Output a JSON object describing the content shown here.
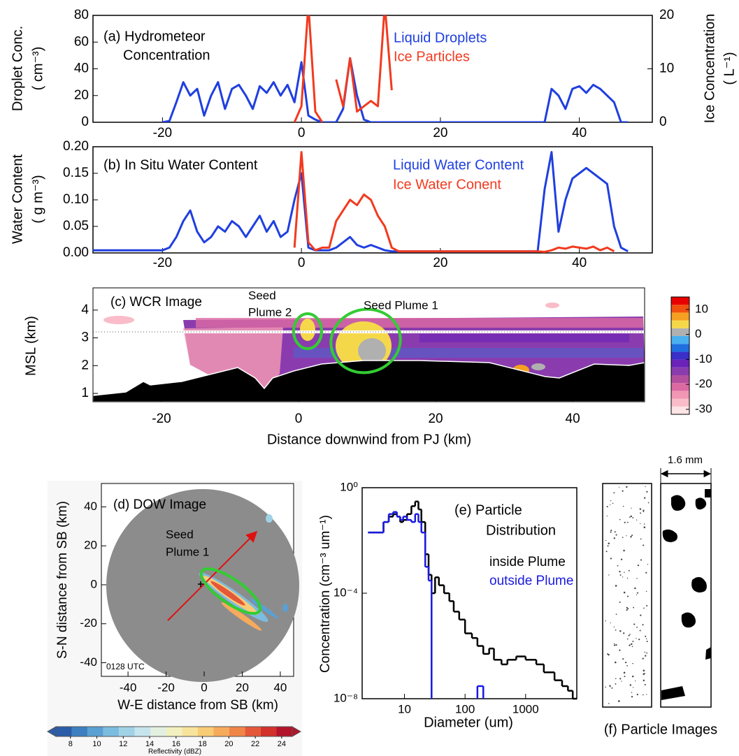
{
  "chart_data": [
    {
      "type": "line",
      "labels": [
        "(a) Hydrometeor",
        "Concentration"
      ],
      "ylabel": [
        "Droplet Conc.",
        "( cm⁻³)"
      ],
      "y2label": [
        "Ice  Concentration",
        "( L⁻¹)"
      ],
      "x": [
        -30,
        -29,
        -28,
        -27,
        -26,
        -25,
        -24,
        -23,
        -22,
        -21,
        -20,
        -19,
        -18,
        -17,
        -16,
        -15,
        -14,
        -13,
        -12,
        -11,
        -10,
        -9,
        -8,
        -7,
        -6,
        -5,
        -4,
        -3,
        -2,
        -1,
        0,
        1,
        2,
        3,
        4,
        5,
        6,
        7,
        8,
        9,
        10,
        11,
        12,
        13,
        14,
        15,
        16,
        17,
        18,
        19,
        20,
        21,
        22,
        23,
        24,
        25,
        26,
        27,
        28,
        29,
        30,
        31,
        32,
        33,
        34,
        35,
        36,
        37,
        38,
        39,
        40,
        41,
        42,
        43,
        44,
        45,
        46,
        47,
        48
      ],
      "series": [
        {
          "name": "Liquid Droplets",
          "color": "#1f3fe0",
          "values": [
            null,
            null,
            null,
            null,
            null,
            null,
            null,
            null,
            null,
            null,
            0,
            1,
            15,
            30,
            20,
            25,
            5,
            20,
            30,
            10,
            25,
            28,
            20,
            10,
            27,
            22,
            30,
            20,
            28,
            15,
            45,
            5,
            2,
            0,
            0,
            0,
            10,
            48,
            20,
            2,
            0,
            0,
            0,
            0,
            0,
            0,
            0,
            0,
            0,
            0,
            0,
            0,
            0,
            0,
            0,
            0,
            0,
            0,
            0,
            0,
            0,
            0,
            0,
            0,
            0,
            0,
            25,
            20,
            10,
            25,
            27,
            22,
            28,
            25,
            20,
            15,
            0,
            0,
            null
          ]
        },
        {
          "name": "Ice Particles",
          "color": "#f23a1f",
          "axis": "y2",
          "values": [
            null,
            null,
            null,
            null,
            null,
            null,
            null,
            null,
            null,
            null,
            null,
            null,
            null,
            null,
            null,
            null,
            null,
            null,
            null,
            null,
            null,
            null,
            null,
            null,
            null,
            null,
            null,
            null,
            null,
            0,
            3,
            22,
            2,
            0,
            null,
            8,
            3,
            12,
            2,
            3,
            4,
            3,
            22,
            6,
            null,
            null,
            null,
            null,
            null,
            null,
            null,
            null,
            null,
            null,
            null,
            null,
            null,
            null,
            null,
            null,
            null,
            null,
            null,
            null,
            null,
            null,
            null,
            null,
            null,
            null,
            null,
            null,
            null,
            null,
            null,
            null,
            null,
            null,
            null
          ]
        }
      ],
      "xlim": [
        -30,
        50.5
      ],
      "xticks": [
        -20,
        0,
        20,
        40
      ],
      "ylim": [
        0,
        80
      ],
      "yticks": [
        0,
        20,
        40,
        60,
        80
      ],
      "y2lim": [
        0,
        20
      ],
      "y2ticks": [
        0,
        10,
        20
      ]
    },
    {
      "type": "line",
      "labels": [
        "(b) In Situ Water Content"
      ],
      "ylabel": [
        "Water Content",
        "( g  m⁻³)"
      ],
      "x": [
        -30,
        -29,
        -28,
        -27,
        -26,
        -25,
        -24,
        -23,
        -22,
        -21,
        -20,
        -19,
        -18,
        -17,
        -16,
        -15,
        -14,
        -13,
        -12,
        -11,
        -10,
        -9,
        -8,
        -7,
        -6,
        -5,
        -4,
        -3,
        -2,
        -1,
        0,
        1,
        2,
        3,
        4,
        5,
        6,
        7,
        8,
        9,
        10,
        11,
        12,
        13,
        14,
        15,
        16,
        17,
        18,
        19,
        20,
        21,
        22,
        23,
        24,
        25,
        26,
        27,
        28,
        29,
        30,
        31,
        32,
        33,
        34,
        35,
        36,
        37,
        38,
        39,
        40,
        41,
        42,
        43,
        44,
        45,
        46,
        47,
        48
      ],
      "series": [
        {
          "name": "Liquid Water Content",
          "color": "#1f3fe0",
          "values": [
            0.005,
            0.005,
            0.005,
            0.005,
            0.005,
            0.005,
            0.005,
            0.005,
            0.005,
            0.005,
            0.005,
            0.01,
            0.03,
            0.06,
            0.08,
            0.04,
            0.02,
            0.03,
            0.05,
            0.04,
            0.06,
            0.05,
            0.03,
            0.05,
            0.07,
            0.04,
            0.06,
            0.03,
            0.04,
            0.1,
            0.15,
            0.01,
            0.005,
            0.005,
            0.005,
            0.01,
            0.02,
            0.03,
            0.015,
            0.01,
            0.015,
            0.01,
            0.005,
            0.003,
            0.003,
            0.003,
            0.003,
            0.003,
            0.003,
            0.003,
            0.003,
            0.003,
            0.003,
            0.003,
            0.003,
            0.003,
            0.003,
            0.003,
            0.003,
            0.003,
            0.003,
            0.003,
            0.003,
            0.003,
            0.003,
            0.12,
            0.19,
            0.04,
            0.1,
            0.14,
            0.15,
            0.16,
            0.15,
            0.14,
            0.13,
            0.05,
            0.01,
            0.003,
            null
          ]
        },
        {
          "name": "Ice Water Conent",
          "color": "#f23a1f",
          "values": [
            null,
            null,
            null,
            null,
            null,
            null,
            null,
            null,
            null,
            null,
            null,
            null,
            null,
            null,
            null,
            null,
            null,
            null,
            null,
            null,
            null,
            null,
            null,
            null,
            null,
            null,
            null,
            null,
            null,
            0.01,
            0.19,
            0.02,
            0.005,
            0.01,
            0.01,
            0.06,
            0.08,
            0.1,
            0.09,
            0.11,
            0.1,
            0.07,
            0.05,
            0.01,
            0.003,
            0.003,
            0.003,
            0.003,
            0.003,
            0.003,
            0.003,
            0.003,
            0.003,
            0.003,
            0.003,
            0.003,
            0.003,
            0.003,
            0.003,
            0.003,
            0.003,
            0.003,
            0.003,
            0.003,
            0.003,
            0.002,
            0.005,
            0.01,
            0.008,
            0.012,
            0.01,
            0.008,
            0.012,
            0.005,
            0.01,
            0.003,
            null,
            null,
            null
          ]
        }
      ],
      "xlim": [
        -30,
        50.5
      ],
      "xticks": [
        -20,
        0,
        20,
        40
      ],
      "ylim": [
        0,
        0.2
      ],
      "yticks": [
        {
          "value": 0,
          "label": "0.00"
        },
        {
          "value": 0.05,
          "label": "0.05"
        },
        {
          "value": 0.1,
          "label": "0.10"
        },
        {
          "value": 0.15,
          "label": "0.15"
        },
        {
          "value": 0.2,
          "label": "0.20"
        }
      ]
    },
    {
      "type": "image",
      "labels": [
        "(c) WCR Image",
        "Seed",
        "Plume 2",
        "Seed Plume 1"
      ],
      "xlabel": "Distance downwind from PJ (km)",
      "ylabel": "MSL (km)",
      "xlim": [
        -30,
        50.5
      ],
      "xticks": [
        -20,
        0,
        20,
        40
      ],
      "ylim": [
        0.7,
        4.8
      ],
      "yticks": [
        1,
        2,
        3,
        4
      ],
      "colorbar": {
        "orientation": "vertical",
        "clim": [
          -32,
          15
        ],
        "ticks": [
          10,
          0,
          -10,
          -20,
          -30
        ],
        "colors": [
          "#fde4e6",
          "#f9bcc8",
          "#f196b4",
          "#dc6aa2",
          "#b44f9e",
          "#8a3cae",
          "#6a22b8",
          "#3a2fc8",
          "#1f6fe0",
          "#4ab0f0",
          "#b0b0b0",
          "#f5d84a",
          "#f5a020",
          "#f05010",
          "#e80000"
        ]
      }
    },
    {
      "type": "image",
      "labels": [
        "(d) DOW Image",
        "Seed",
        "Plume 1",
        "0128 UTC"
      ],
      "xlabel": "W-E distance from SB (km)",
      "ylabel": "S-N distance from SB (km)",
      "xlim": [
        -54,
        47
      ],
      "xticks": [
        -40,
        -20,
        0,
        20,
        40
      ],
      "ylim": [
        -47,
        52
      ],
      "yticks": [
        -40,
        -20,
        0,
        20,
        40
      ],
      "colorbar": {
        "orientation": "horizontal",
        "label": "Reflectivity (dBZ)",
        "clim": [
          6.9,
          24.8
        ],
        "ticks": [
          8,
          10,
          12,
          14,
          16,
          18,
          20,
          22,
          24
        ],
        "colors": [
          "#2a5ca8",
          "#3d7fc0",
          "#5aa0d2",
          "#7cbcdf",
          "#a0d2e6",
          "#c6e4ee",
          "#e3efe0",
          "#f3f0c0",
          "#f8e39a",
          "#f8cb75",
          "#f6aa5c",
          "#f08548",
          "#e4583a",
          "#d2312c",
          "#b2142a"
        ]
      }
    },
    {
      "type": "histogram",
      "labels": [
        "(e) Particle",
        "Distribution"
      ],
      "xlabel": "Diameter (um)",
      "ylabel": "Concentration (cm⁻³ um⁻¹)",
      "xlog": true,
      "ylog": true,
      "bins": [
        2.5,
        3.5,
        4.5,
        5.5,
        6.5,
        7.5,
        8.5,
        9.5,
        11,
        13,
        15,
        17,
        19,
        22,
        25,
        28,
        32,
        37,
        45,
        55,
        65,
        80,
        100,
        130,
        160,
        200,
        250,
        300,
        400,
        500,
        700,
        1000,
        1500,
        2000,
        3000,
        4000,
        5000,
        6000,
        7000
      ],
      "series": [
        {
          "name": "inside Plume",
          "color": "#000000",
          "values": [
            0.02,
            0.02,
            0.05,
            0.08,
            0.1,
            0.08,
            0.05,
            0.06,
            0.1,
            0.2,
            0.3,
            0.15,
            0.05,
            0.003,
            0.0005,
            0.0001,
            0.0004,
            0.0002,
            0.0001,
            5e-05,
            2e-05,
            1e-05,
            3e-06,
            2e-06,
            1e-06,
            5e-07,
            8e-07,
            3e-07,
            2e-07,
            3e-07,
            4e-07,
            3e-07,
            2e-07,
            1e-07,
            5e-08,
            3e-08,
            2e-08,
            1e-08
          ]
        },
        {
          "name": "outside Plume",
          "color": "#1a1ae0",
          "values": [
            0.02,
            0.02,
            0.05,
            0.1,
            0.12,
            0.08,
            0.06,
            0.08,
            0.06,
            0.05,
            0.1,
            0.05,
            0.02,
            0.001,
            0.0003,
            null,
            null,
            null,
            null,
            null,
            null,
            null,
            null,
            null,
            3e-08,
            null,
            null,
            null,
            null,
            null,
            null,
            null,
            null,
            null,
            null,
            null,
            null,
            null
          ]
        }
      ],
      "xlim": [
        2,
        7000
      ],
      "xticks": [
        10,
        100,
        1000
      ],
      "ylim": [
        1e-08,
        1
      ],
      "yticks": [
        {
          "value": 1e-08,
          "label": "10⁻⁸"
        },
        {
          "value": 0.0001,
          "label": "10⁻⁴"
        },
        {
          "value": 1,
          "label": "10⁰"
        }
      ]
    },
    {
      "type": "image",
      "scale_label": "1.6 mm",
      "caption": "(f) Particle Images"
    }
  ]
}
